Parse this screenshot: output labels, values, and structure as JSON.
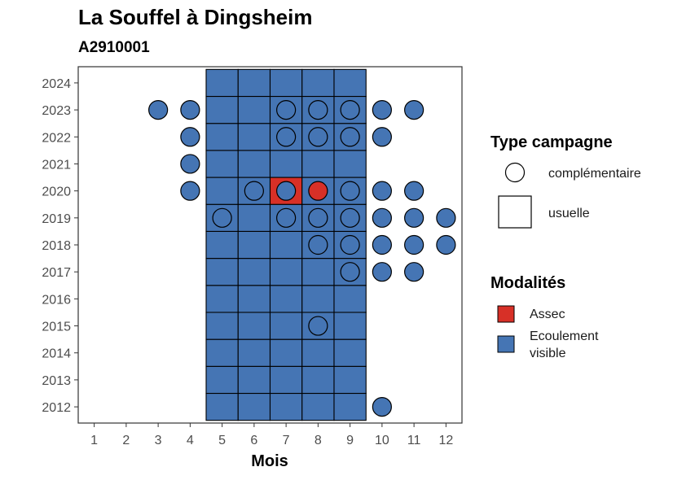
{
  "chart_data": {
    "type": "heatmap",
    "title": "La Souffel à Dingsheim",
    "subtitle": "A2910001",
    "xlabel": "Mois",
    "ylabel": "",
    "x_ticks": [
      1,
      2,
      3,
      4,
      5,
      6,
      7,
      8,
      9,
      10,
      11,
      12
    ],
    "y_ticks": [
      2024,
      2023,
      2022,
      2021,
      2020,
      2019,
      2018,
      2017,
      2016,
      2015,
      2014,
      2013,
      2012
    ],
    "xlim": [
      0.5,
      12.5
    ],
    "ylim": [
      2011.4,
      2024.6
    ],
    "colors": {
      "assec": "#d73027",
      "ecoulement": "#4575b4"
    },
    "legend_type": {
      "title": "Type campagne",
      "items": [
        {
          "shape": "circle",
          "label": "complémentaire"
        },
        {
          "shape": "square",
          "label": "usuelle"
        }
      ]
    },
    "legend_modalites": {
      "title": "Modalités",
      "items": [
        {
          "key": "assec",
          "label_lines": [
            "Assec"
          ]
        },
        {
          "key": "ecoulement",
          "label_lines": [
            "Ecoulement",
            "visible"
          ]
        }
      ]
    },
    "usuelle": [
      {
        "year": 2012,
        "months": [
          5,
          6,
          7,
          8,
          9
        ],
        "values": [
          "ecoulement",
          "ecoulement",
          "ecoulement",
          "ecoulement",
          "ecoulement"
        ]
      },
      {
        "year": 2013,
        "months": [
          5,
          6,
          7,
          8,
          9
        ],
        "values": [
          "ecoulement",
          "ecoulement",
          "ecoulement",
          "ecoulement",
          "ecoulement"
        ]
      },
      {
        "year": 2014,
        "months": [
          5,
          6,
          7,
          8,
          9
        ],
        "values": [
          "ecoulement",
          "ecoulement",
          "ecoulement",
          "ecoulement",
          "ecoulement"
        ]
      },
      {
        "year": 2015,
        "months": [
          5,
          6,
          7,
          8,
          9
        ],
        "values": [
          "ecoulement",
          "ecoulement",
          "ecoulement",
          "ecoulement",
          "ecoulement"
        ]
      },
      {
        "year": 2016,
        "months": [
          5,
          6,
          7,
          8,
          9
        ],
        "values": [
          "ecoulement",
          "ecoulement",
          "ecoulement",
          "ecoulement",
          "ecoulement"
        ]
      },
      {
        "year": 2017,
        "months": [
          5,
          6,
          7,
          8,
          9
        ],
        "values": [
          "ecoulement",
          "ecoulement",
          "ecoulement",
          "ecoulement",
          "ecoulement"
        ]
      },
      {
        "year": 2018,
        "months": [
          5,
          6,
          7,
          8,
          9
        ],
        "values": [
          "ecoulement",
          "ecoulement",
          "ecoulement",
          "ecoulement",
          "ecoulement"
        ]
      },
      {
        "year": 2019,
        "months": [
          5,
          6,
          7,
          8,
          9
        ],
        "values": [
          "ecoulement",
          "ecoulement",
          "ecoulement",
          "ecoulement",
          "ecoulement"
        ]
      },
      {
        "year": 2020,
        "months": [
          5,
          6,
          7,
          8,
          9
        ],
        "values": [
          "ecoulement",
          "ecoulement",
          "assec",
          "ecoulement",
          "ecoulement"
        ]
      },
      {
        "year": 2021,
        "months": [
          5,
          6,
          7,
          8,
          9
        ],
        "values": [
          "ecoulement",
          "ecoulement",
          "ecoulement",
          "ecoulement",
          "ecoulement"
        ]
      },
      {
        "year": 2022,
        "months": [
          5,
          6,
          7,
          8,
          9
        ],
        "values": [
          "ecoulement",
          "ecoulement",
          "ecoulement",
          "ecoulement",
          "ecoulement"
        ]
      },
      {
        "year": 2023,
        "months": [
          5,
          6,
          7,
          8,
          9
        ],
        "values": [
          "ecoulement",
          "ecoulement",
          "ecoulement",
          "ecoulement",
          "ecoulement"
        ]
      },
      {
        "year": 2024,
        "months": [
          5,
          6,
          7,
          8,
          9
        ],
        "values": [
          "ecoulement",
          "ecoulement",
          "ecoulement",
          "ecoulement",
          "ecoulement"
        ]
      }
    ],
    "complementaire": [
      {
        "year": 2023,
        "month": 3,
        "value": "ecoulement"
      },
      {
        "year": 2023,
        "month": 4,
        "value": "ecoulement"
      },
      {
        "year": 2023,
        "month": 7,
        "value": "ecoulement"
      },
      {
        "year": 2023,
        "month": 8,
        "value": "ecoulement"
      },
      {
        "year": 2023,
        "month": 9,
        "value": "ecoulement"
      },
      {
        "year": 2023,
        "month": 10,
        "value": "ecoulement"
      },
      {
        "year": 2023,
        "month": 11,
        "value": "ecoulement"
      },
      {
        "year": 2022,
        "month": 4,
        "value": "ecoulement"
      },
      {
        "year": 2022,
        "month": 7,
        "value": "ecoulement"
      },
      {
        "year": 2022,
        "month": 8,
        "value": "ecoulement"
      },
      {
        "year": 2022,
        "month": 9,
        "value": "ecoulement"
      },
      {
        "year": 2022,
        "month": 10,
        "value": "ecoulement"
      },
      {
        "year": 2021,
        "month": 4,
        "value": "ecoulement"
      },
      {
        "year": 2020,
        "month": 4,
        "value": "ecoulement"
      },
      {
        "year": 2020,
        "month": 6,
        "value": "ecoulement"
      },
      {
        "year": 2020,
        "month": 7,
        "value": "ecoulement"
      },
      {
        "year": 2020,
        "month": 8,
        "value": "assec"
      },
      {
        "year": 2020,
        "month": 9,
        "value": "ecoulement"
      },
      {
        "year": 2020,
        "month": 10,
        "value": "ecoulement"
      },
      {
        "year": 2020,
        "month": 11,
        "value": "ecoulement"
      },
      {
        "year": 2019,
        "month": 5,
        "value": "ecoulement"
      },
      {
        "year": 2019,
        "month": 7,
        "value": "ecoulement"
      },
      {
        "year": 2019,
        "month": 8,
        "value": "ecoulement"
      },
      {
        "year": 2019,
        "month": 9,
        "value": "ecoulement"
      },
      {
        "year": 2019,
        "month": 10,
        "value": "ecoulement"
      },
      {
        "year": 2019,
        "month": 11,
        "value": "ecoulement"
      },
      {
        "year": 2019,
        "month": 12,
        "value": "ecoulement"
      },
      {
        "year": 2018,
        "month": 8,
        "value": "ecoulement"
      },
      {
        "year": 2018,
        "month": 9,
        "value": "ecoulement"
      },
      {
        "year": 2018,
        "month": 10,
        "value": "ecoulement"
      },
      {
        "year": 2018,
        "month": 11,
        "value": "ecoulement"
      },
      {
        "year": 2018,
        "month": 12,
        "value": "ecoulement"
      },
      {
        "year": 2017,
        "month": 9,
        "value": "ecoulement"
      },
      {
        "year": 2017,
        "month": 10,
        "value": "ecoulement"
      },
      {
        "year": 2017,
        "month": 11,
        "value": "ecoulement"
      },
      {
        "year": 2015,
        "month": 8,
        "value": "ecoulement"
      },
      {
        "year": 2012,
        "month": 10,
        "value": "ecoulement"
      }
    ]
  }
}
